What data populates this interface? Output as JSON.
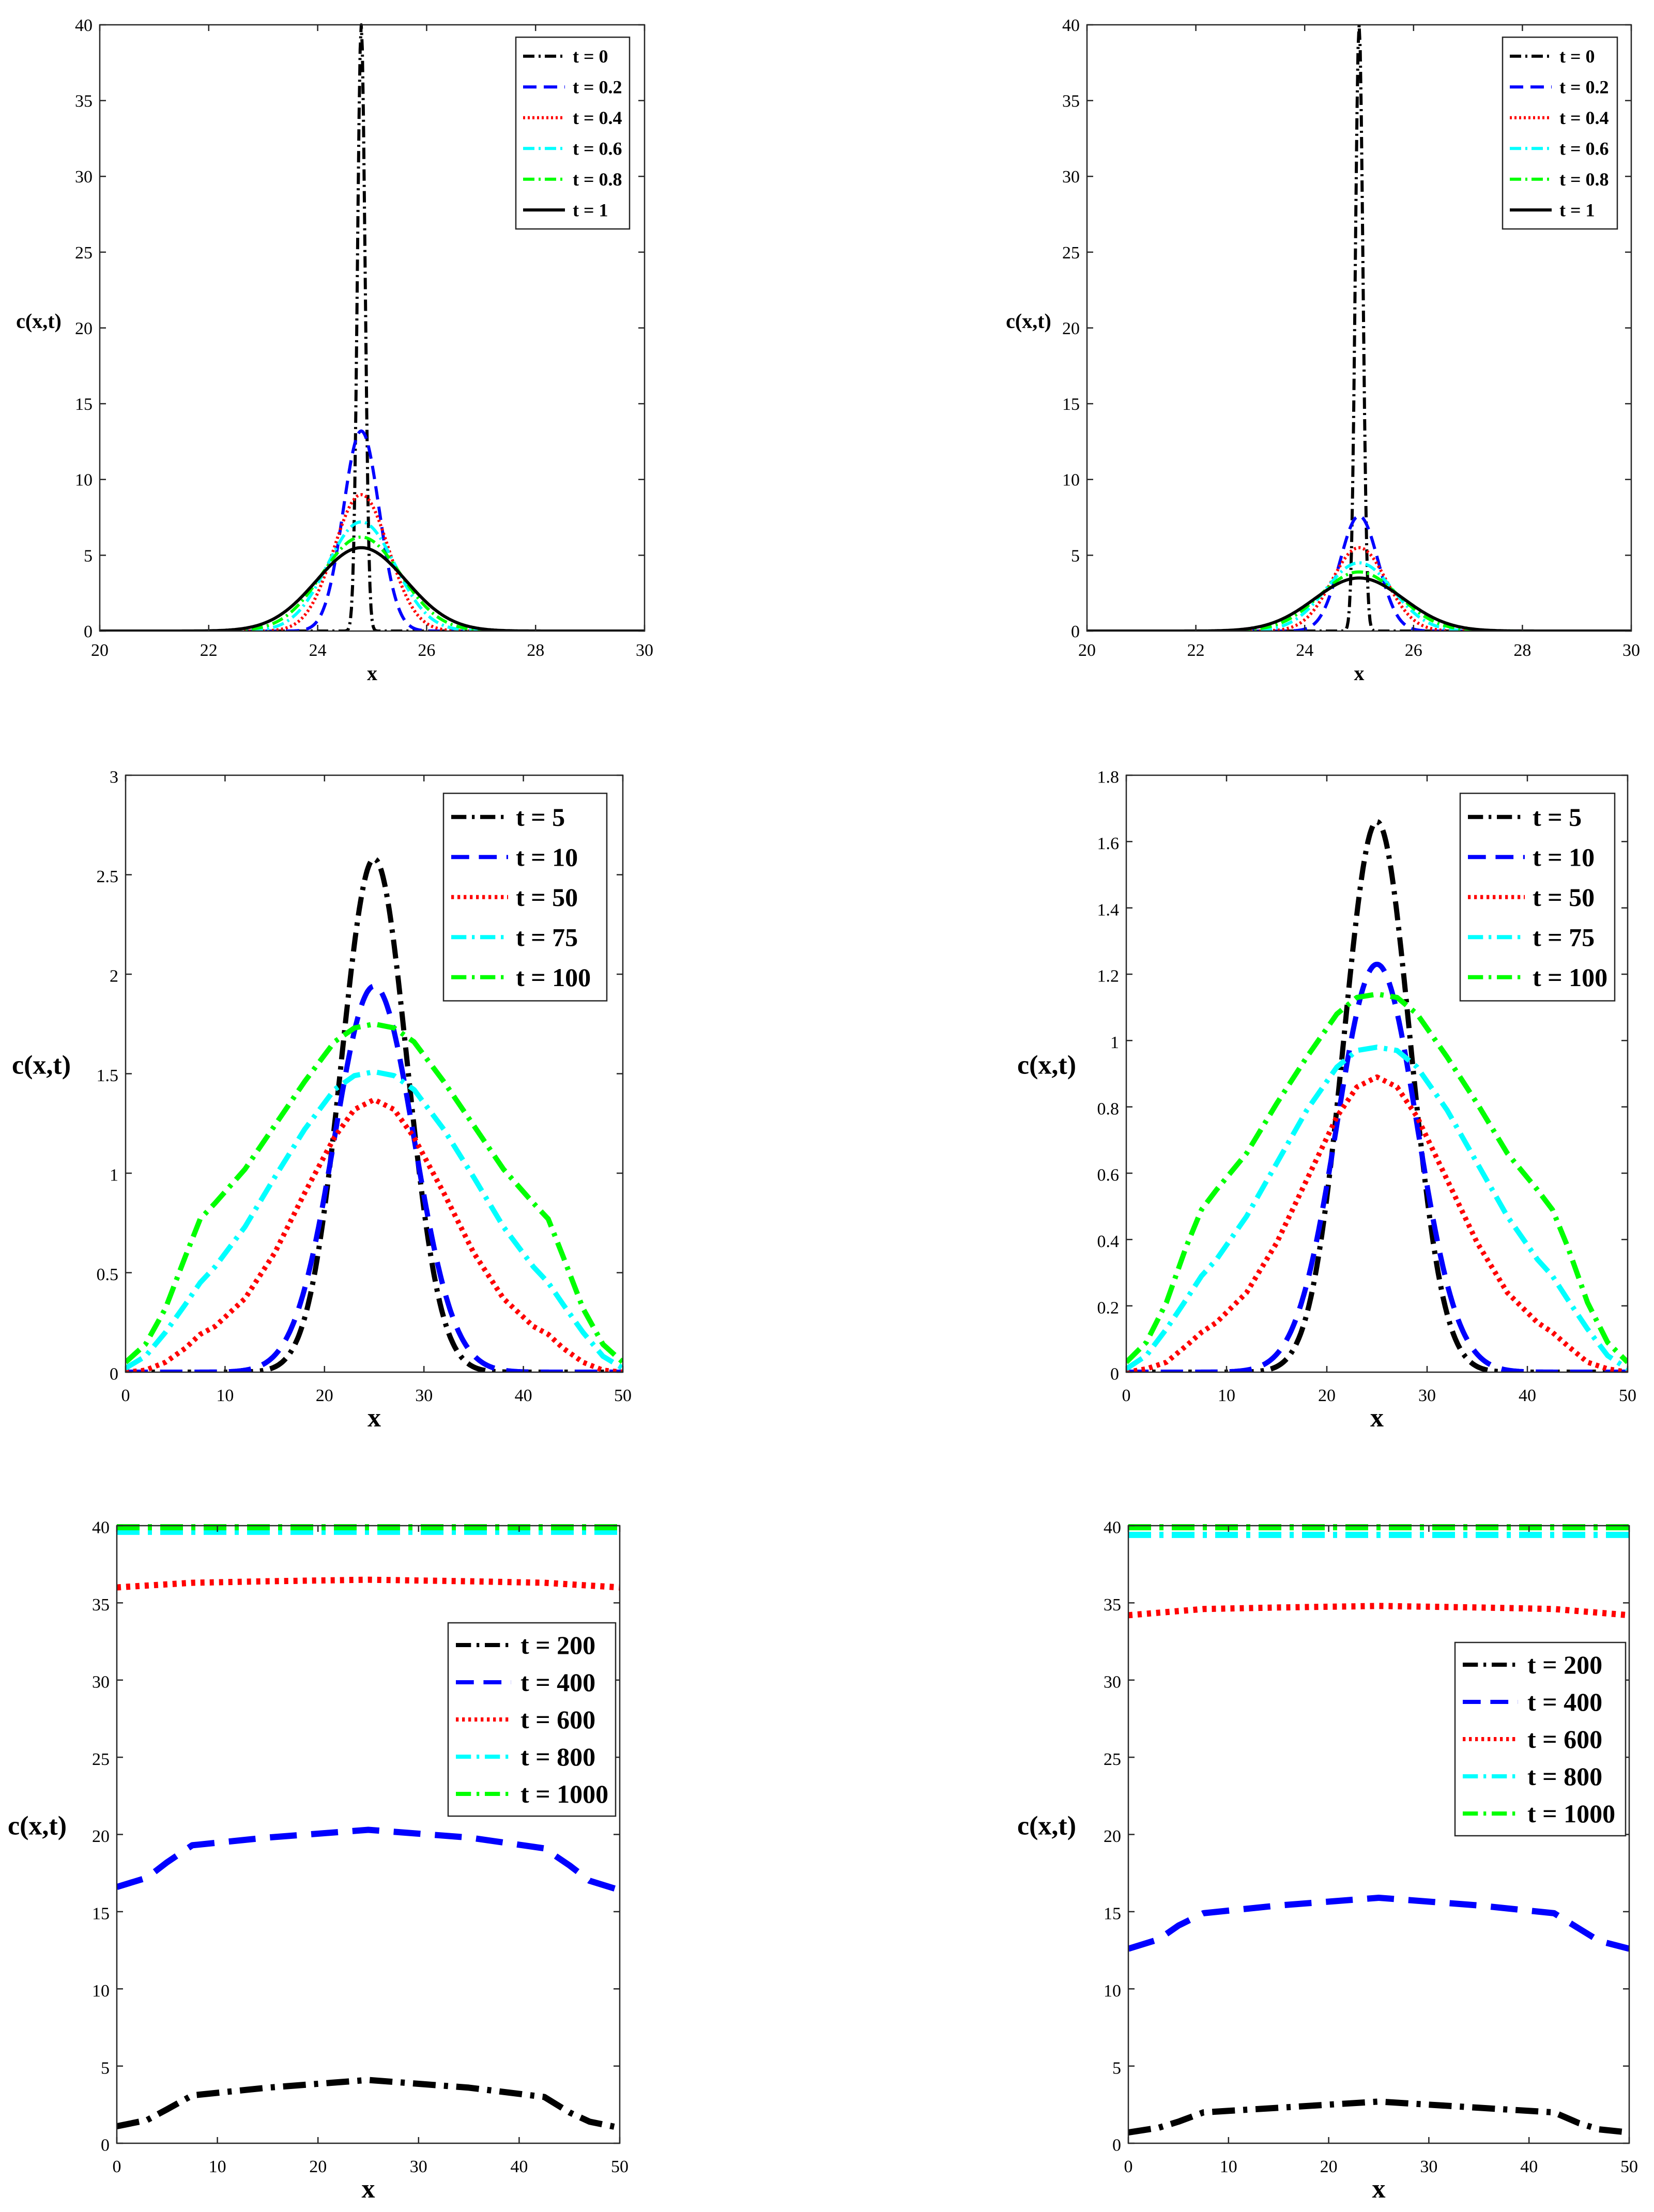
{
  "chart_data": [
    {
      "id": "a",
      "type": "line",
      "xlabel": "x",
      "ylabel": "c(x,t)",
      "xlim": [
        20,
        30
      ],
      "ylim": [
        0,
        40
      ],
      "xticks": [
        "20",
        "22",
        "24",
        "26",
        "28",
        "30"
      ],
      "yticks": [
        "0",
        "5",
        "10",
        "15",
        "20",
        "25",
        "30",
        "35",
        "40"
      ],
      "legend_position": "top-right",
      "series": [
        {
          "name": "t = 0",
          "color": "#000000",
          "kind": "gauss",
          "center": 24.8,
          "sigma": 0.07,
          "peak": 40.0
        },
        {
          "name": "t = 0.2",
          "color": "#0000ff",
          "kind": "gauss",
          "center": 24.8,
          "sigma": 0.33,
          "peak": 13.2
        },
        {
          "name": "t = 0.4",
          "color": "#ff0000",
          "kind": "gauss",
          "center": 24.8,
          "sigma": 0.5,
          "peak": 9.0
        },
        {
          "name": "t = 0.6",
          "color": "#00ffff",
          "kind": "gauss",
          "center": 24.8,
          "sigma": 0.62,
          "peak": 7.2
        },
        {
          "name": "t = 0.8",
          "color": "#00ff00",
          "kind": "gauss",
          "center": 24.8,
          "sigma": 0.72,
          "peak": 6.2
        },
        {
          "name": "t = 1",
          "color": "#000000",
          "kind": "gauss",
          "center": 24.8,
          "sigma": 0.82,
          "peak": 5.5
        }
      ]
    },
    {
      "id": "b",
      "type": "line",
      "xlabel": "x",
      "ylabel": "c(x,t)",
      "xlim": [
        20,
        30
      ],
      "ylim": [
        0,
        40
      ],
      "xticks": [
        "20",
        "22",
        "24",
        "26",
        "28",
        "30"
      ],
      "yticks": [
        "0",
        "5",
        "10",
        "15",
        "20",
        "25",
        "30",
        "35",
        "40"
      ],
      "legend_position": "top-right",
      "series": [
        {
          "name": "t = 0",
          "color": "#000000",
          "kind": "gauss",
          "center": 25.0,
          "sigma": 0.07,
          "peak": 40.0
        },
        {
          "name": "t = 0.2",
          "color": "#0000ff",
          "kind": "gauss",
          "center": 25.0,
          "sigma": 0.35,
          "peak": 7.6
        },
        {
          "name": "t = 0.4",
          "color": "#ff0000",
          "kind": "gauss",
          "center": 25.0,
          "sigma": 0.5,
          "peak": 5.5
        },
        {
          "name": "t = 0.6",
          "color": "#00ffff",
          "kind": "gauss",
          "center": 25.0,
          "sigma": 0.62,
          "peak": 4.5
        },
        {
          "name": "t = 0.8",
          "color": "#00ff00",
          "kind": "gauss",
          "center": 25.0,
          "sigma": 0.72,
          "peak": 3.9
        },
        {
          "name": "t = 1",
          "color": "#000000",
          "kind": "gauss",
          "center": 25.0,
          "sigma": 0.82,
          "peak": 3.5
        }
      ]
    },
    {
      "id": "c",
      "type": "line",
      "xlabel": "x",
      "ylabel": "c(x,t)",
      "xlim": [
        0,
        50
      ],
      "ylim": [
        0,
        3
      ],
      "xticks": [
        "0",
        "10",
        "20",
        "30",
        "40",
        "50"
      ],
      "yticks": [
        "0",
        "0.5",
        "1",
        "1.5",
        "2",
        "2.5",
        "3"
      ],
      "legend_position": "top-right",
      "series": [
        {
          "name": "t = 5",
          "color": "#000000",
          "kind": "gauss",
          "center": 25,
          "sigma": 3.3,
          "peak": 2.58
        },
        {
          "name": "t = 10",
          "color": "#0000ff",
          "kind": "gauss",
          "center": 25,
          "sigma": 4.0,
          "peak": 1.94
        },
        {
          "name": "t = 50",
          "color": "#ff0000",
          "kind": "points",
          "x": [
            0,
            2,
            4,
            6,
            7.5,
            9,
            12,
            15,
            18,
            21,
            23,
            25,
            27,
            29,
            32,
            35,
            38,
            41,
            42.5,
            44,
            46,
            48,
            50
          ],
          "y": [
            0.0,
            0.01,
            0.05,
            0.12,
            0.19,
            0.23,
            0.37,
            0.6,
            0.9,
            1.18,
            1.32,
            1.37,
            1.32,
            1.18,
            0.9,
            0.6,
            0.37,
            0.23,
            0.19,
            0.12,
            0.05,
            0.01,
            0.0
          ]
        },
        {
          "name": "t = 75",
          "color": "#00ffff",
          "kind": "points",
          "x": [
            0,
            2,
            4,
            6,
            7.5,
            9,
            12,
            15,
            18,
            21,
            23,
            25,
            27,
            29,
            32,
            35,
            38,
            41,
            42.5,
            44,
            46,
            48,
            50
          ],
          "y": [
            0.02,
            0.08,
            0.2,
            0.34,
            0.45,
            0.53,
            0.73,
            0.98,
            1.22,
            1.42,
            1.49,
            1.51,
            1.49,
            1.42,
            1.22,
            0.98,
            0.73,
            0.53,
            0.45,
            0.34,
            0.2,
            0.08,
            0.02
          ]
        },
        {
          "name": "t = 100",
          "color": "#00ff00",
          "kind": "points",
          "x": [
            0,
            2,
            4,
            6,
            7.5,
            9,
            12,
            15,
            18,
            21,
            23,
            25,
            27,
            29,
            32,
            35,
            38,
            41,
            42.5,
            44,
            46,
            48,
            50
          ],
          "y": [
            0.05,
            0.14,
            0.32,
            0.58,
            0.77,
            0.85,
            1.02,
            1.24,
            1.46,
            1.66,
            1.73,
            1.75,
            1.73,
            1.66,
            1.46,
            1.24,
            1.02,
            0.85,
            0.77,
            0.58,
            0.32,
            0.14,
            0.05
          ]
        }
      ]
    },
    {
      "id": "d",
      "type": "line",
      "xlabel": "x",
      "ylabel": "c(x,t)",
      "xlim": [
        0,
        50
      ],
      "ylim": [
        0,
        1.8
      ],
      "xticks": [
        "0",
        "10",
        "20",
        "30",
        "40",
        "50"
      ],
      "yticks": [
        "0",
        "0.2",
        "0.4",
        "0.6",
        "0.8",
        "1",
        "1.2",
        "1.4",
        "1.6",
        "1.8"
      ],
      "legend_position": "top-right",
      "series": [
        {
          "name": "t = 5",
          "color": "#000000",
          "kind": "gauss",
          "center": 25,
          "sigma": 3.3,
          "peak": 1.66
        },
        {
          "name": "t = 10",
          "color": "#0000ff",
          "kind": "gauss",
          "center": 25,
          "sigma": 4.0,
          "peak": 1.23
        },
        {
          "name": "t = 50",
          "color": "#ff0000",
          "kind": "points",
          "x": [
            0,
            2,
            4,
            6,
            7.5,
            9,
            12,
            15,
            18,
            21,
            23,
            25,
            27,
            29,
            32,
            35,
            38,
            41,
            42.5,
            44,
            46,
            48,
            50
          ],
          "y": [
            0.0,
            0.01,
            0.03,
            0.08,
            0.12,
            0.15,
            0.24,
            0.39,
            0.58,
            0.77,
            0.86,
            0.89,
            0.86,
            0.77,
            0.58,
            0.39,
            0.24,
            0.15,
            0.12,
            0.08,
            0.03,
            0.01,
            0.0
          ]
        },
        {
          "name": "t = 75",
          "color": "#00ffff",
          "kind": "points",
          "x": [
            0,
            2,
            4,
            6,
            7.5,
            9,
            12,
            15,
            18,
            21,
            23,
            25,
            27,
            29,
            32,
            35,
            38,
            41,
            42.5,
            44,
            46,
            48,
            50
          ],
          "y": [
            0.01,
            0.05,
            0.13,
            0.22,
            0.29,
            0.34,
            0.47,
            0.63,
            0.79,
            0.92,
            0.97,
            0.98,
            0.97,
            0.92,
            0.79,
            0.63,
            0.47,
            0.34,
            0.29,
            0.22,
            0.13,
            0.05,
            0.01
          ]
        },
        {
          "name": "t = 100",
          "color": "#00ff00",
          "kind": "points",
          "x": [
            0,
            2,
            4,
            6,
            7.5,
            9,
            12,
            15,
            18,
            21,
            23,
            25,
            27,
            29,
            32,
            35,
            38,
            41,
            42.5,
            44,
            46,
            48,
            50
          ],
          "y": [
            0.03,
            0.09,
            0.21,
            0.38,
            0.49,
            0.55,
            0.66,
            0.81,
            0.95,
            1.08,
            1.13,
            1.14,
            1.13,
            1.08,
            0.95,
            0.81,
            0.66,
            0.55,
            0.49,
            0.38,
            0.21,
            0.09,
            0.03
          ]
        }
      ]
    },
    {
      "id": "e",
      "type": "line",
      "xlabel": "x",
      "ylabel": "c(x,t)",
      "xlim": [
        0,
        50
      ],
      "ylim": [
        0,
        40
      ],
      "xticks": [
        "0",
        "10",
        "20",
        "30",
        "40",
        "50"
      ],
      "yticks": [
        "0",
        "5",
        "10",
        "15",
        "20",
        "25",
        "30",
        "35",
        "40"
      ],
      "legend_position": "center-right",
      "series": [
        {
          "name": "t = 200",
          "color": "#000000",
          "kind": "points",
          "x": [
            0,
            3,
            5,
            7.5,
            15,
            25,
            35,
            42.5,
            45,
            47,
            50
          ],
          "y": [
            1.1,
            1.5,
            2.2,
            3.1,
            3.6,
            4.1,
            3.6,
            3.0,
            2.0,
            1.4,
            1.0
          ]
        },
        {
          "name": "t = 400",
          "color": "#0000ff",
          "kind": "points",
          "x": [
            0,
            3,
            5,
            7.5,
            15,
            25,
            35,
            42.5,
            45,
            47,
            50
          ],
          "y": [
            16.6,
            17.2,
            18.2,
            19.3,
            19.8,
            20.3,
            19.8,
            19.1,
            18.0,
            17.0,
            16.4
          ]
        },
        {
          "name": "t = 600",
          "color": "#ff0000",
          "kind": "points",
          "x": [
            0,
            7.5,
            15,
            25,
            35,
            42.5,
            50
          ],
          "y": [
            36.0,
            36.3,
            36.4,
            36.5,
            36.4,
            36.3,
            36.0
          ]
        },
        {
          "name": "t = 800",
          "color": "#00ffff",
          "kind": "points",
          "x": [
            0,
            25,
            50
          ],
          "y": [
            39.6,
            39.6,
            39.6
          ]
        },
        {
          "name": "t = 1000",
          "color": "#00ff00",
          "kind": "points",
          "x": [
            0,
            25,
            50
          ],
          "y": [
            39.9,
            39.9,
            39.9
          ]
        }
      ]
    },
    {
      "id": "f",
      "type": "line",
      "xlabel": "x",
      "ylabel": "c(x,t)",
      "xlim": [
        0,
        50
      ],
      "ylim": [
        0,
        40
      ],
      "xticks": [
        "0",
        "10",
        "20",
        "30",
        "40",
        "50"
      ],
      "yticks": [
        "0",
        "5",
        "10",
        "15",
        "20",
        "25",
        "30",
        "35",
        "40"
      ],
      "legend_position": "center-right",
      "series": [
        {
          "name": "t = 200",
          "color": "#000000",
          "kind": "points",
          "x": [
            0,
            3,
            5,
            7.5,
            15,
            25,
            35,
            42.5,
            45,
            47,
            50
          ],
          "y": [
            0.7,
            1.0,
            1.4,
            2.0,
            2.3,
            2.7,
            2.3,
            2.0,
            1.3,
            0.9,
            0.7
          ]
        },
        {
          "name": "t = 400",
          "color": "#0000ff",
          "kind": "points",
          "x": [
            0,
            3,
            5,
            7.5,
            15,
            25,
            35,
            42.5,
            45,
            47,
            50
          ],
          "y": [
            12.6,
            13.2,
            14.1,
            14.9,
            15.4,
            15.9,
            15.4,
            14.9,
            13.9,
            13.1,
            12.6
          ]
        },
        {
          "name": "t = 600",
          "color": "#ff0000",
          "kind": "points",
          "x": [
            0,
            7.5,
            15,
            25,
            35,
            42.5,
            50
          ],
          "y": [
            34.2,
            34.6,
            34.7,
            34.8,
            34.7,
            34.6,
            34.2
          ]
        },
        {
          "name": "t = 800",
          "color": "#00ffff",
          "kind": "points",
          "x": [
            0,
            25,
            50
          ],
          "y": [
            39.4,
            39.4,
            39.4
          ]
        },
        {
          "name": "t = 1000",
          "color": "#00ff00",
          "kind": "points",
          "x": [
            0,
            25,
            50
          ],
          "y": [
            39.9,
            39.9,
            39.9
          ]
        }
      ]
    }
  ]
}
